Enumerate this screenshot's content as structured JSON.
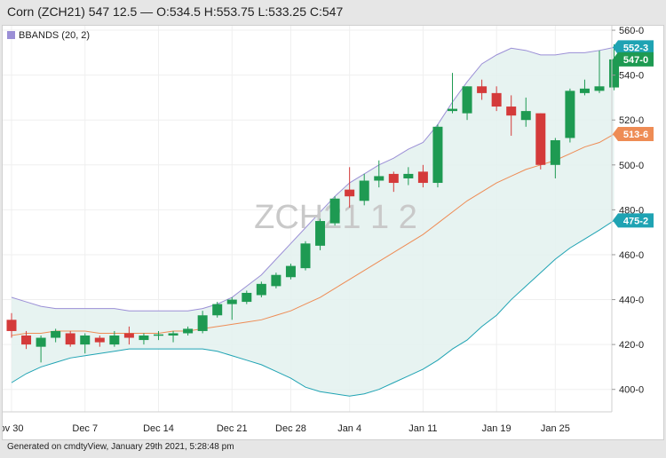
{
  "header": {
    "title": "Corn (ZCH21) 547 12.5 — O:534.5 H:553.75 L:533.25 C:547"
  },
  "legend": {
    "label": "BBANDS (20, 2)",
    "swatch_color": "#9b8fd6"
  },
  "watermark": "ZCH21 1 2",
  "footer": {
    "text": "Generated on cmdtyView, January 29th 2021, 5:28:48 pm"
  },
  "price_tags": [
    {
      "label": "552-3",
      "value": 552.375,
      "color": "#1fa3b3"
    },
    {
      "label": "547-0",
      "value": 547.0,
      "color": "#1e9a52"
    },
    {
      "label": "513-6",
      "value": 513.75,
      "color": "#ee8c55"
    },
    {
      "label": "475-2",
      "value": 475.25,
      "color": "#1fa3b3"
    }
  ],
  "chart_data": {
    "type": "candlestick",
    "ylim": [
      390,
      562
    ],
    "y_ticks": [
      "560-0",
      "540-0",
      "520-0",
      "500-0",
      "480-0",
      "460-0",
      "440-0",
      "420-0",
      "400-0"
    ],
    "x_tick_labels": [
      "ov 30",
      "Dec 7",
      "Dec 14",
      "Dec 21",
      "Dec 28",
      "Jan 4",
      "Jan 11",
      "Jan 19",
      "Jan 25"
    ],
    "colors": {
      "up": "#1e9a52",
      "down": "#d43a3a",
      "upper_band": "#9b8fd6",
      "middle_band": "#ee8c55",
      "lower_band": "#1fa3b3",
      "band_fill": "#e3f1ee"
    },
    "candles": [
      {
        "date": "Nov 30",
        "open": 431,
        "high": 434,
        "low": 423,
        "close": 426
      },
      {
        "date": "Dec 1",
        "open": 424,
        "high": 426,
        "low": 418,
        "close": 420
      },
      {
        "date": "Dec 2",
        "open": 419,
        "high": 424,
        "low": 412,
        "close": 423
      },
      {
        "date": "Dec 3",
        "open": 423,
        "high": 427,
        "low": 421,
        "close": 426
      },
      {
        "date": "Dec 4",
        "open": 425,
        "high": 426,
        "low": 419,
        "close": 420
      },
      {
        "date": "Dec 7",
        "open": 420,
        "high": 425,
        "low": 416,
        "close": 424
      },
      {
        "date": "Dec 8",
        "open": 423,
        "high": 424,
        "low": 419,
        "close": 421
      },
      {
        "date": "Dec 9",
        "open": 420,
        "high": 426,
        "low": 419,
        "close": 424
      },
      {
        "date": "Dec 10",
        "open": 425,
        "high": 428,
        "low": 420,
        "close": 423
      },
      {
        "date": "Dec 11",
        "open": 422,
        "high": 425,
        "low": 420,
        "close": 424
      },
      {
        "date": "Dec 14",
        "open": 424,
        "high": 426,
        "low": 422,
        "close": 424.5
      },
      {
        "date": "Dec 15",
        "open": 424,
        "high": 426,
        "low": 421,
        "close": 425
      },
      {
        "date": "Dec 16",
        "open": 425,
        "high": 428,
        "low": 424,
        "close": 427
      },
      {
        "date": "Dec 17",
        "open": 426,
        "high": 435,
        "low": 425,
        "close": 433
      },
      {
        "date": "Dec 18",
        "open": 433,
        "high": 439,
        "low": 432,
        "close": 438
      },
      {
        "date": "Dec 21",
        "open": 438,
        "high": 441,
        "low": 431,
        "close": 440
      },
      {
        "date": "Dec 22",
        "open": 439,
        "high": 444,
        "low": 438,
        "close": 443
      },
      {
        "date": "Dec 23",
        "open": 442,
        "high": 448,
        "low": 441,
        "close": 447
      },
      {
        "date": "Dec 24",
        "open": 446,
        "high": 452,
        "low": 445,
        "close": 451
      },
      {
        "date": "Dec 28",
        "open": 450,
        "high": 456,
        "low": 449,
        "close": 455
      },
      {
        "date": "Dec 29",
        "open": 454,
        "high": 466,
        "low": 453,
        "close": 465
      },
      {
        "date": "Dec 30",
        "open": 464,
        "high": 476,
        "low": 462,
        "close": 475
      },
      {
        "date": "Dec 31",
        "open": 474,
        "high": 486,
        "low": 473,
        "close": 485
      },
      {
        "date": "Jan 4",
        "open": 489,
        "high": 499,
        "low": 481,
        "close": 486
      },
      {
        "date": "Jan 5",
        "open": 484,
        "high": 496,
        "low": 482,
        "close": 493
      },
      {
        "date": "Jan 6",
        "open": 493,
        "high": 502,
        "low": 490,
        "close": 495
      },
      {
        "date": "Jan 7",
        "open": 496,
        "high": 497,
        "low": 488,
        "close": 492
      },
      {
        "date": "Jan 8",
        "open": 494,
        "high": 499,
        "low": 491,
        "close": 496
      },
      {
        "date": "Jan 11",
        "open": 497,
        "high": 500,
        "low": 490,
        "close": 492
      },
      {
        "date": "Jan 12",
        "open": 492,
        "high": 518,
        "low": 490,
        "close": 517
      },
      {
        "date": "Jan 13",
        "open": 524,
        "high": 541,
        "low": 523,
        "close": 525
      },
      {
        "date": "Jan 14",
        "open": 523,
        "high": 535,
        "low": 520,
        "close": 535
      },
      {
        "date": "Jan 15",
        "open": 535,
        "high": 538,
        "low": 529,
        "close": 532
      },
      {
        "date": "Jan 19",
        "open": 532,
        "high": 535,
        "low": 524,
        "close": 526
      },
      {
        "date": "Jan 20",
        "open": 526,
        "high": 531,
        "low": 513,
        "close": 522
      },
      {
        "date": "Jan 21",
        "open": 520,
        "high": 530,
        "low": 517,
        "close": 524
      },
      {
        "date": "Jan 22",
        "open": 523,
        "high": 523,
        "low": 498,
        "close": 500
      },
      {
        "date": "Jan 25",
        "open": 500,
        "high": 512,
        "low": 494,
        "close": 511
      },
      {
        "date": "Jan 26",
        "open": 512,
        "high": 534,
        "low": 510,
        "close": 533
      },
      {
        "date": "Jan 27",
        "open": 532,
        "high": 538,
        "low": 531,
        "close": 534
      },
      {
        "date": "Jan 28",
        "open": 533,
        "high": 551,
        "low": 532,
        "close": 535
      },
      {
        "date": "Jan 29",
        "open": 534.5,
        "high": 553.75,
        "low": 533.25,
        "close": 547
      }
    ],
    "bands": {
      "upper": [
        441,
        439,
        437,
        436,
        436,
        436,
        436,
        436,
        435,
        435,
        435,
        435,
        435,
        436,
        438,
        441,
        446,
        451,
        458,
        465,
        472,
        479,
        486,
        492,
        496,
        500,
        503,
        507,
        510,
        518,
        528,
        537,
        545,
        549,
        552,
        551,
        549,
        549,
        550,
        550,
        551,
        552.375
      ],
      "middle": [
        424,
        425,
        425,
        426,
        426,
        426,
        425,
        425,
        425,
        425,
        425,
        426,
        426,
        427,
        428,
        429,
        430,
        431,
        433,
        435,
        438,
        441,
        445,
        449,
        453,
        457,
        461,
        465,
        469,
        474,
        479,
        484,
        488,
        492,
        495,
        498,
        500,
        502,
        505,
        508,
        510,
        513.75
      ],
      "lower": [
        403,
        407,
        410,
        412,
        414,
        415,
        416,
        417,
        418,
        418,
        418,
        418,
        418,
        418,
        417,
        415,
        413,
        411,
        408,
        405,
        401,
        399,
        398,
        397,
        398,
        400,
        403,
        406,
        409,
        413,
        418,
        422,
        428,
        433,
        440,
        446,
        452,
        458,
        463,
        467,
        471,
        475.25
      ]
    }
  }
}
